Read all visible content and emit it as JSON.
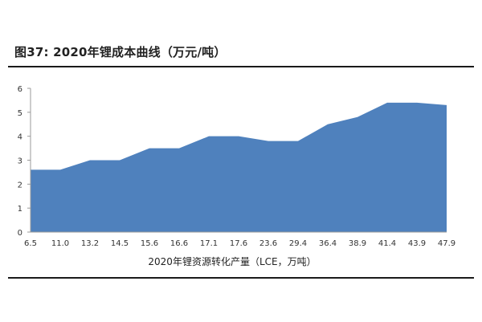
{
  "header": {
    "title": "图37:  2020年锂成本曲线（万元/吨）"
  },
  "chart_data": {
    "type": "area",
    "title": "图37:  2020年锂成本曲线（万元/吨）",
    "xlabel": "2020年锂资源转化产量（LCE，万吨）",
    "ylabel": "",
    "categories": [
      "6.5",
      "11.0",
      "13.2",
      "14.5",
      "15.6",
      "16.6",
      "17.1",
      "17.6",
      "23.6",
      "29.4",
      "36.4",
      "38.9",
      "41.4",
      "43.9",
      "47.9"
    ],
    "series": [
      {
        "values": [
          2.6,
          2.6,
          3.0,
          3.0,
          3.5,
          3.5,
          4.0,
          4.0,
          3.8,
          3.8,
          4.5,
          4.8,
          5.4,
          5.4,
          5.3
        ]
      }
    ],
    "ylim": [
      0,
      6
    ],
    "yticks": [
      0,
      1,
      2,
      3,
      4,
      5,
      6
    ],
    "grid": false,
    "legend": "none",
    "colors": {
      "fill": "#4f81bd",
      "axis": "#9a9a9a",
      "rule": "#1a1a1a"
    }
  }
}
